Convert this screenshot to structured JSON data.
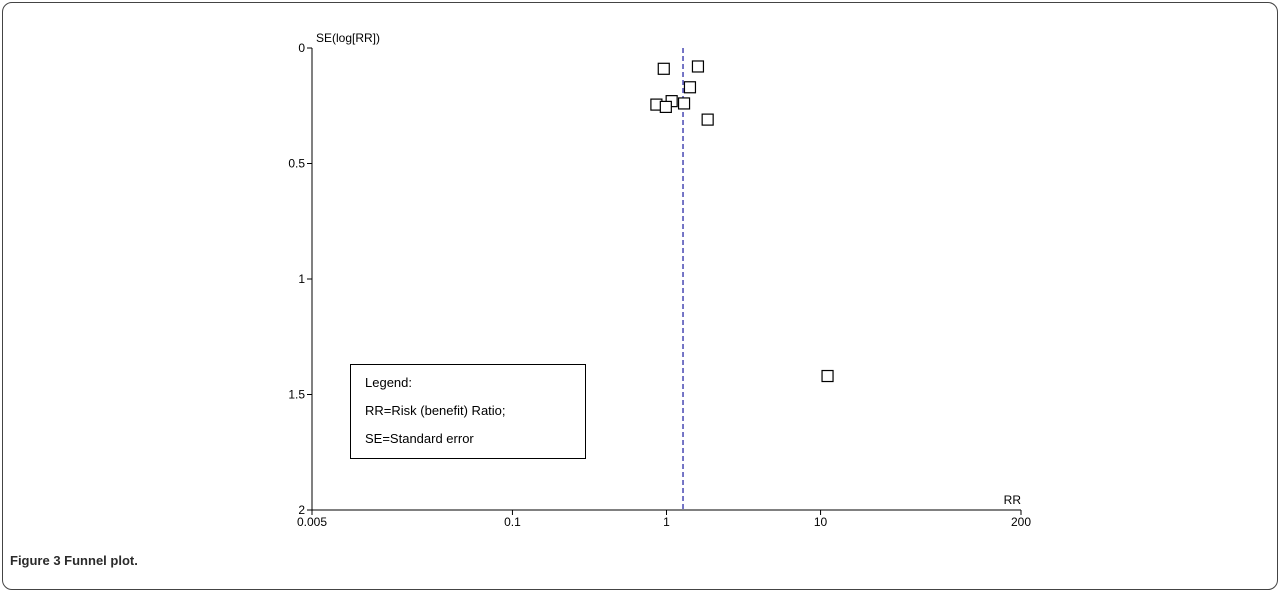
{
  "chart_data": {
    "type": "scatter",
    "title": "",
    "xlabel": "RR",
    "ylabel": "SE(log[RR])",
    "x_scale": "log",
    "y_axis_inverted": true,
    "xlim": [
      0.005,
      200
    ],
    "ylim": [
      0,
      2
    ],
    "x_ticks": [
      {
        "value": 0.005,
        "label": "0.005"
      },
      {
        "value": 0.1,
        "label": "0.1"
      },
      {
        "value": 1,
        "label": "1"
      },
      {
        "value": 10,
        "label": "10"
      },
      {
        "value": 200,
        "label": "200"
      }
    ],
    "y_ticks": [
      {
        "value": 0,
        "label": "0"
      },
      {
        "value": 0.5,
        "label": "0.5"
      },
      {
        "value": 1,
        "label": "1"
      },
      {
        "value": 1.5,
        "label": "1.5"
      },
      {
        "value": 2,
        "label": "2"
      }
    ],
    "reference_line": {
      "x": 1.28,
      "style": "dashed",
      "color": "#1a1aa0"
    },
    "marker": {
      "shape": "open-square",
      "color": "#000000"
    },
    "points": [
      {
        "x": 0.96,
        "y": 0.09
      },
      {
        "x": 1.6,
        "y": 0.08
      },
      {
        "x": 1.42,
        "y": 0.17
      },
      {
        "x": 1.08,
        "y": 0.23
      },
      {
        "x": 1.3,
        "y": 0.24
      },
      {
        "x": 0.86,
        "y": 0.245
      },
      {
        "x": 0.99,
        "y": 0.255
      },
      {
        "x": 1.85,
        "y": 0.31
      },
      {
        "x": 11.1,
        "y": 1.42
      }
    ],
    "grid": false,
    "legend": {
      "position": "bottom-left",
      "lines": [
        "Legend:",
        "RR=Risk (benefit) Ratio;",
        "SE=Standard error"
      ]
    }
  },
  "caption": {
    "text": "Figure 3 Funnel plot."
  }
}
